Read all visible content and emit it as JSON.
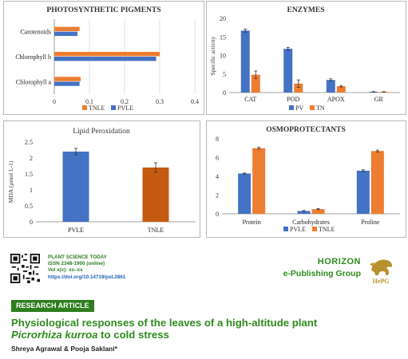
{
  "colors": {
    "blue": "#4472c4",
    "orange": "#ed7d31",
    "dark_orange": "#c55a11",
    "green": "#2e8b1e"
  },
  "chart_data": [
    {
      "id": "pigments",
      "type": "bar",
      "orientation": "horizontal",
      "title": "PHOTOSYNTHETIC  PIGMENTS",
      "categories": [
        "Carotenoids",
        "Chlorophyll b",
        "Chlorophyll a"
      ],
      "series": [
        {
          "name": "TNLE",
          "color": "#ed7d31",
          "values": [
            0.072,
            0.3,
            0.075
          ]
        },
        {
          "name": "PVLE",
          "color": "#4472c4",
          "values": [
            0.066,
            0.29,
            0.072
          ]
        }
      ],
      "xlim": [
        0,
        0.4
      ],
      "ticks": [
        "0",
        "0.1",
        "0.2",
        "0.3",
        "0.4"
      ],
      "legend": "bottom"
    },
    {
      "id": "enzymes",
      "type": "bar",
      "title": "ENZYMES",
      "ylabel": "Specific activity",
      "categories": [
        "CAT",
        "POD",
        "APOX",
        "GR"
      ],
      "series": [
        {
          "name": "PV",
          "color": "#4472c4",
          "values": [
            16.7,
            11.8,
            3.4,
            0.2
          ],
          "errors": [
            0.4,
            0.4,
            0.3,
            0.05
          ]
        },
        {
          "name": "TN",
          "color": "#ed7d31",
          "values": [
            4.8,
            2.4,
            1.7,
            0.2
          ],
          "errors": [
            1.0,
            1.0,
            0.2,
            0.05
          ]
        }
      ],
      "ylim": [
        0,
        20
      ],
      "ticks": [
        "0",
        "5",
        "10",
        "15",
        "20"
      ],
      "legend": "bottom"
    },
    {
      "id": "lipid",
      "type": "bar",
      "title": "Lipid  Peroxidation",
      "ylabel": "MDA (µmol L-1)",
      "categories": [
        "PVLE",
        "TNLE"
      ],
      "colors": [
        "#4472c4",
        "#c55a11"
      ],
      "values": [
        2.2,
        1.7
      ],
      "errors": [
        0.1,
        0.15
      ],
      "ylim": [
        0,
        2.5
      ],
      "ticks": [
        "0",
        "0.5",
        "1",
        "1.5",
        "2",
        "2.5"
      ]
    },
    {
      "id": "osmo",
      "type": "bar",
      "title": "OSMOPROTECTANTS",
      "categories": [
        "Protein",
        "Carbohydrates",
        "Proline"
      ],
      "series": [
        {
          "name": "PVLE",
          "color": "#4472c4",
          "values": [
            4.3,
            0.3,
            4.6
          ],
          "errors": [
            0.05,
            0.05,
            0.1
          ]
        },
        {
          "name": "TNLE",
          "color": "#ed7d31",
          "values": [
            7.0,
            0.5,
            6.7
          ],
          "errors": [
            0.1,
            0.05,
            0.1
          ]
        }
      ],
      "ylim": [
        0,
        8
      ],
      "ticks": [
        "0",
        "2",
        "4",
        "6",
        "8"
      ],
      "legend": "bottom"
    }
  ],
  "journal": {
    "name": "PLANT SCIENCE TODAY",
    "issn": "ISSN 2348-1900 (online)",
    "vol": "Vol x(x):  xx–xx",
    "doi": "https://doi.org/10.14719/pst.2861"
  },
  "publisher": {
    "line1": "HORIZON",
    "line2": "e-Publishing Group",
    "logo_text": "HePG"
  },
  "article": {
    "badge": "RESEARCH ARTICLE",
    "title_line1": "Physiological responses of the leaves of a high-altitude plant",
    "title_species": "Picrorhiza kurroa",
    "title_rest": " to cold stress",
    "authors": "Shreya Agrawal & Pooja Saklani*"
  }
}
